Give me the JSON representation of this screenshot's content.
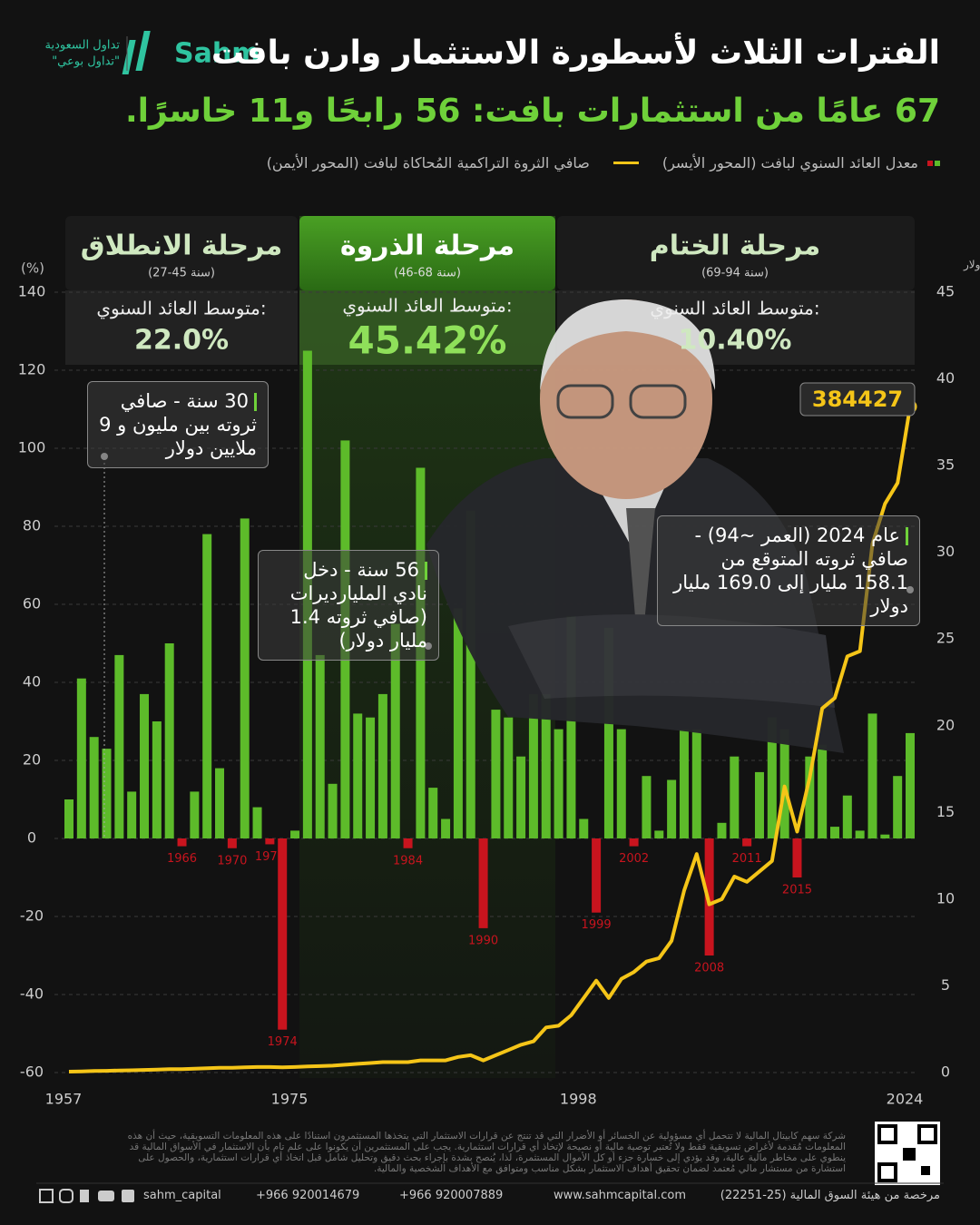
{
  "header": {
    "title": "الفترات الثلاث لأسطورة الاستثمار وارن بافت",
    "subtitle": "67 عامًا من استثمارات بافت: 56 رابحًا و11 خاسرًا.",
    "logo": "Sahm",
    "tagline_1": "تداول السعودية",
    "tagline_2": "\"تداول بوعي\""
  },
  "chart_data": {
    "type": "bar-line",
    "x": [
      1957,
      1958,
      1959,
      1960,
      1961,
      1962,
      1963,
      1964,
      1965,
      1966,
      1967,
      1968,
      1969,
      1970,
      1971,
      1972,
      1973,
      1974,
      1975,
      1976,
      1977,
      1978,
      1979,
      1980,
      1981,
      1982,
      1983,
      1984,
      1985,
      1986,
      1987,
      1988,
      1989,
      1990,
      1991,
      1992,
      1993,
      1994,
      1995,
      1996,
      1997,
      1998,
      1999,
      2000,
      2001,
      2002,
      2003,
      2004,
      2005,
      2006,
      2007,
      2008,
      2009,
      2010,
      2011,
      2012,
      2013,
      2014,
      2015,
      2016,
      2017,
      2018,
      2019,
      2020,
      2021,
      2022,
      2023,
      2024
    ],
    "xlim": [
      1957,
      2024
    ],
    "xticks": [
      1957,
      1975,
      1998,
      2024
    ],
    "ylim": [
      -60,
      140
    ],
    "yticks": [
      -60,
      -40,
      -20,
      0,
      20,
      40,
      60,
      80,
      100,
      120,
      140
    ],
    "ylabel": "(%)",
    "y2lim": [
      0,
      45
    ],
    "y2ticks": [
      0,
      5,
      10,
      15,
      20,
      25,
      30,
      35,
      40,
      45
    ],
    "y2label": "الوحدة: مائة ألف دولار",
    "grid": true,
    "series": [
      {
        "name": "معدل العائد السنوي لبافت (المحور الأيسر)",
        "type": "bar",
        "color": "#5dbb2a",
        "negative_color": "#c8141e",
        "values": [
          10,
          41,
          26,
          23,
          47,
          12,
          37,
          30,
          50,
          -2,
          12,
          78,
          18,
          -2.5,
          82,
          8,
          -1.5,
          -49,
          2,
          125,
          47,
          14,
          102,
          32,
          31,
          37,
          55,
          -2.5,
          95,
          13,
          5,
          59,
          84,
          -23,
          33,
          31,
          21,
          37,
          37,
          28,
          57,
          5,
          -19,
          54,
          28,
          -2,
          16,
          2,
          15,
          28,
          28,
          -30,
          4,
          21,
          -2,
          17,
          31,
          28,
          -10,
          21,
          24,
          3,
          11,
          2,
          32,
          1,
          16,
          27
        ]
      },
      {
        "name": "صافي الثروة التراكمية المُحاكاة لبافت (المحور الأيمن)",
        "type": "line",
        "color": "#f5c518",
        "axis": "y2",
        "values": [
          0.05,
          0.07,
          0.09,
          0.1,
          0.12,
          0.13,
          0.15,
          0.17,
          0.2,
          0.2,
          0.22,
          0.25,
          0.27,
          0.27,
          0.3,
          0.32,
          0.32,
          0.3,
          0.32,
          0.35,
          0.37,
          0.4,
          0.45,
          0.5,
          0.55,
          0.6,
          0.6,
          0.6,
          0.7,
          0.7,
          0.7,
          0.9,
          1.0,
          0.7,
          1.0,
          1.3,
          1.6,
          1.8,
          2.6,
          2.7,
          3.3,
          4.3,
          5.3,
          4.3,
          5.4,
          5.8,
          6.4,
          6.6,
          7.6,
          10.5,
          12.6,
          9.7,
          10,
          11.3,
          11,
          11.6,
          12.2,
          16.5,
          13.9,
          17,
          21,
          21.6,
          24,
          24.3,
          30.5,
          32.8,
          34,
          38.4
        ]
      }
    ],
    "phases": [
      {
        "title": "مرحلة الانطلاق",
        "range": "(27-45 سنة)",
        "avg_label": "متوسط العائد السنوي:",
        "avg_value": "22.0%"
      },
      {
        "title": "مرحلة الذروة",
        "range": "(46-68 سنة)",
        "avg_label": "متوسط العائد السنوي:",
        "avg_value": "45.42%"
      },
      {
        "title": "مرحلة الختام",
        "range": "(69-94 سنة)",
        "avg_label": "متوسط العائد السنوي:",
        "avg_value": "10.40%"
      }
    ],
    "annotations": [
      "30 سنة - صافي ثروته بين مليون و 9 ملايين دولار",
      "56 سنة - دخل نادي المليارديرات (صافي ثروته 1.4 مليار دولار)",
      "عام 2024 (العمر ~94) - صافي ثروته المتوقع من 158.1 مليار إلى 169.0 مليار دولار",
      "384427"
    ]
  },
  "footer": {
    "disclaimer": "شركة سهم كابيتال المالية لا تتحمل أي مسؤولية عن الخسائر أو الأضرار التي قد تنتج عن قرارات الاستثمار التي يتخذها المستثمرون استنادًا على هذه المعلومات التسويقية، حيث أن هذه المعلومات مُقدمة لأغراض تسويقية فقط ولا تُعتبر توصية مالية أو نصيحة لإتخاذ أي قرارات استثمارية. يجب على المستثمرين أن يكونوا على علم تام بأن الاستثمار في الأسواق المالية قد ينطوي على مخاطر مالية عالية، وقد يؤدي إلى خسارة جزء أو كل الأموال المستثمرة، لذا، يُنصح بشدة بإجراء بحث دقيق وتحليل شامل قبل اتخاذ أي قرارات استثمارية، والحصول على استشارة من مستشار مالي مُعتمد لضمان تحقيق أهداف الاستثمار بشكل مناسب ومتوافق مع الأهداف الشخصية والمالية.",
    "license": "مرخصة من هيئة السوق المالية (25-22251)",
    "website": "www.sahmcapital.com",
    "phone_1": "+966 920007889",
    "phone_2": "+966 920014679",
    "handle": "sahm_capital"
  }
}
